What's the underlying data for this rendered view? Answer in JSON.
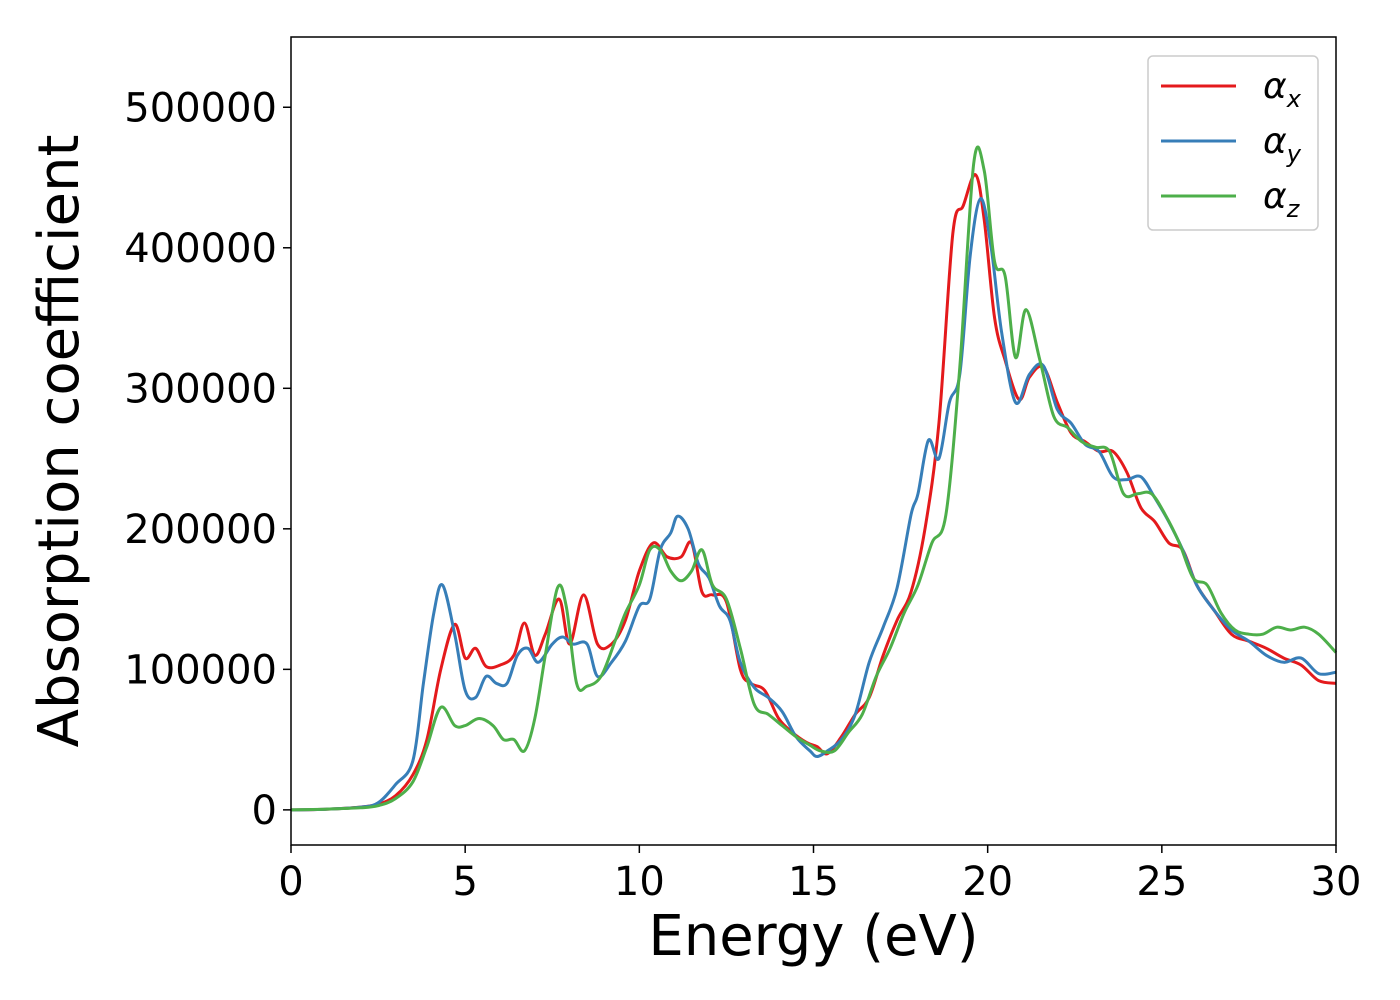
{
  "chart_data": {
    "type": "line",
    "xlabel": "Energy (eV)",
    "ylabel": "Absorption coefficient",
    "xlim": [
      0,
      30
    ],
    "ylim": [
      -25000,
      550000
    ],
    "xticks": [
      "0",
      "5",
      "10",
      "15",
      "20",
      "25",
      "30"
    ],
    "yticks": [
      "0",
      "100000",
      "200000",
      "300000",
      "400000",
      "500000"
    ],
    "grid": false,
    "legend_position": "top-right",
    "series": [
      {
        "name": "αx",
        "base": "α",
        "sub": "x",
        "color": "#e41a1c",
        "x": [
          0,
          1,
          2,
          2.5,
          3,
          3.5,
          3.9,
          4.3,
          4.7,
          5.0,
          5.3,
          5.6,
          6.0,
          6.4,
          6.7,
          7.0,
          7.3,
          7.7,
          8.0,
          8.4,
          8.8,
          9.2,
          9.6,
          10.0,
          10.4,
          10.8,
          11.2,
          11.5,
          11.8,
          12.1,
          12.5,
          12.9,
          13.2,
          13.6,
          14.0,
          14.4,
          14.8,
          15.1,
          15.4,
          15.8,
          16.2,
          16.6,
          17.0,
          17.4,
          17.8,
          18.2,
          18.6,
          19.0,
          19.3,
          19.65,
          19.9,
          20.2,
          20.5,
          20.9,
          21.2,
          21.6,
          22.0,
          22.4,
          22.8,
          23.2,
          23.6,
          24.0,
          24.4,
          24.8,
          25.2,
          25.6,
          26.0,
          26.5,
          27.0,
          27.5,
          28.0,
          28.5,
          29.0,
          29.5,
          30.0
        ],
        "y": [
          0,
          500,
          2000,
          4000,
          10000,
          25000,
          50000,
          100000,
          132000,
          108000,
          115000,
          102000,
          103000,
          110000,
          133000,
          110000,
          125000,
          150000,
          118000,
          153000,
          118000,
          118000,
          135000,
          170000,
          190000,
          180000,
          180000,
          190000,
          155000,
          153000,
          148000,
          100000,
          90000,
          85000,
          65000,
          55000,
          48000,
          45000,
          40000,
          52000,
          68000,
          80000,
          110000,
          135000,
          155000,
          200000,
          275000,
          410000,
          430000,
          452000,
          420000,
          350000,
          320000,
          292000,
          308000,
          315000,
          290000,
          268000,
          262000,
          255000,
          255000,
          240000,
          215000,
          205000,
          190000,
          185000,
          160000,
          142000,
          125000,
          120000,
          115000,
          108000,
          103000,
          92000,
          90000
        ]
      },
      {
        "name": "αy",
        "base": "α",
        "sub": "y",
        "color": "#377eb8",
        "x": [
          0,
          1,
          2,
          2.5,
          3,
          3.5,
          3.8,
          4.1,
          4.35,
          4.7,
          5.0,
          5.3,
          5.6,
          5.9,
          6.2,
          6.5,
          6.8,
          7.1,
          7.5,
          7.8,
          8.1,
          8.5,
          8.8,
          9.2,
          9.6,
          10.0,
          10.3,
          10.6,
          10.9,
          11.1,
          11.4,
          11.7,
          12.0,
          12.3,
          12.6,
          12.9,
          13.3,
          13.7,
          14.1,
          14.5,
          14.9,
          15.1,
          15.4,
          15.8,
          16.2,
          16.6,
          17.0,
          17.4,
          17.8,
          18.0,
          18.3,
          18.6,
          18.9,
          19.2,
          19.5,
          19.8,
          20.1,
          20.4,
          20.8,
          21.2,
          21.6,
          22.0,
          22.4,
          22.8,
          23.2,
          23.6,
          24.0,
          24.4,
          24.8,
          25.2,
          25.6,
          26.0,
          26.5,
          27.0,
          27.5,
          28.0,
          28.5,
          29.0,
          29.5,
          30.0
        ],
        "y": [
          0,
          500,
          2000,
          5000,
          18000,
          35000,
          90000,
          140000,
          160000,
          125000,
          85000,
          80000,
          95000,
          90000,
          90000,
          110000,
          115000,
          105000,
          118000,
          123000,
          118000,
          118000,
          95000,
          105000,
          120000,
          145000,
          150000,
          185000,
          197000,
          209000,
          200000,
          175000,
          165000,
          145000,
          135000,
          105000,
          87000,
          80000,
          70000,
          52000,
          42000,
          38000,
          42000,
          50000,
          68000,
          105000,
          130000,
          158000,
          210000,
          225000,
          263000,
          250000,
          290000,
          310000,
          395000,
          435000,
          400000,
          340000,
          290000,
          310000,
          316000,
          285000,
          275000,
          260000,
          255000,
          237000,
          235000,
          237000,
          222000,
          205000,
          185000,
          160000,
          142000,
          128000,
          120000,
          110000,
          105000,
          108000,
          97000,
          98000
        ]
      },
      {
        "name": "αz",
        "base": "α",
        "sub": "z",
        "color": "#4daf4a",
        "x": [
          0,
          1,
          2,
          2.5,
          3,
          3.5,
          3.9,
          4.3,
          4.7,
          5.0,
          5.4,
          5.8,
          6.1,
          6.4,
          6.7,
          7.0,
          7.3,
          7.65,
          7.9,
          8.2,
          8.5,
          8.9,
          9.3,
          9.6,
          10.0,
          10.3,
          10.6,
          10.9,
          11.2,
          11.5,
          11.8,
          12.1,
          12.5,
          12.9,
          13.3,
          13.7,
          14.1,
          14.5,
          14.9,
          15.2,
          15.6,
          16.0,
          16.4,
          16.8,
          17.2,
          17.6,
          18.0,
          18.4,
          18.8,
          19.2,
          19.6,
          19.9,
          20.2,
          20.5,
          20.8,
          21.1,
          21.5,
          21.9,
          22.3,
          22.7,
          23.1,
          23.5,
          23.9,
          24.3,
          24.7,
          25.1,
          25.5,
          25.9,
          26.3,
          26.7,
          27.1,
          27.5,
          27.9,
          28.3,
          28.7,
          29.1,
          29.5,
          30.0
        ],
        "y": [
          0,
          500,
          1500,
          3000,
          8000,
          20000,
          45000,
          73000,
          60000,
          60000,
          65000,
          60000,
          50000,
          50000,
          42000,
          65000,
          110000,
          158000,
          145000,
          90000,
          88000,
          95000,
          120000,
          140000,
          160000,
          185000,
          185000,
          170000,
          163000,
          170000,
          185000,
          160000,
          150000,
          115000,
          75000,
          68000,
          60000,
          52000,
          46000,
          42000,
          42000,
          55000,
          68000,
          95000,
          115000,
          140000,
          160000,
          190000,
          210000,
          315000,
          460000,
          455000,
          390000,
          380000,
          322000,
          356000,
          320000,
          280000,
          272000,
          262000,
          258000,
          255000,
          225000,
          225000,
          225000,
          210000,
          190000,
          165000,
          160000,
          140000,
          128000,
          125000,
          125000,
          130000,
          128000,
          130000,
          125000,
          112000
        ]
      }
    ]
  }
}
